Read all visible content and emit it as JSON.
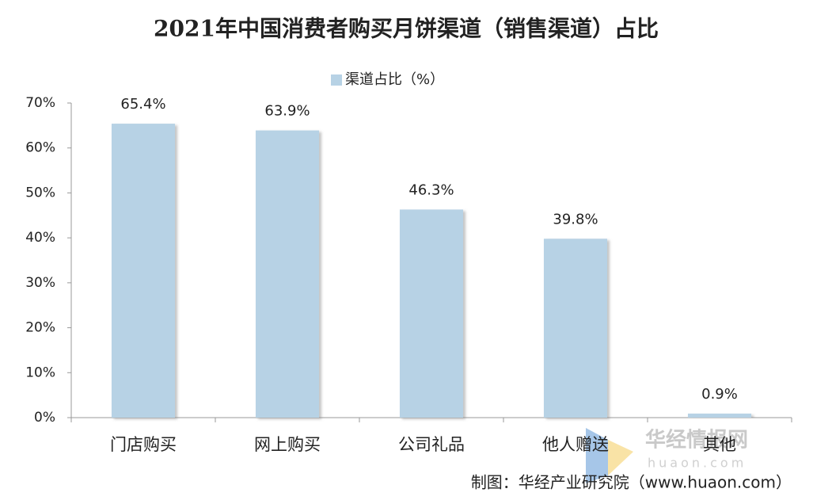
{
  "chart_data": {
    "type": "bar",
    "title": "2021年中国消费者购买月饼渠道（销售渠道）占比",
    "categories": [
      "门店购买",
      "网上购买",
      "公司礼品",
      "他人赠送",
      "其他"
    ],
    "series": [
      {
        "name": "渠道占比（%）",
        "color": "#b7d2e5",
        "values": [
          65.4,
          63.9,
          46.3,
          39.8,
          0.9
        ],
        "value_labels": [
          "65.4%",
          "63.9%",
          "46.3%",
          "39.8%",
          "0.9%"
        ]
      }
    ],
    "ylim": [
      0,
      70
    ],
    "yticks": [
      {
        "value": 0,
        "label": "0%"
      },
      {
        "value": 10,
        "label": "10%"
      },
      {
        "value": 20,
        "label": "20%"
      },
      {
        "value": 30,
        "label": "30%"
      },
      {
        "value": 40,
        "label": "40%"
      },
      {
        "value": 50,
        "label": "50%"
      },
      {
        "value": 60,
        "label": "60%"
      },
      {
        "value": 70,
        "label": "70%"
      }
    ],
    "legend": "top",
    "source": "制图：华经产业研究院（www.huaon.com）",
    "watermark": [
      "华经情报网",
      "huaon.com"
    ]
  }
}
